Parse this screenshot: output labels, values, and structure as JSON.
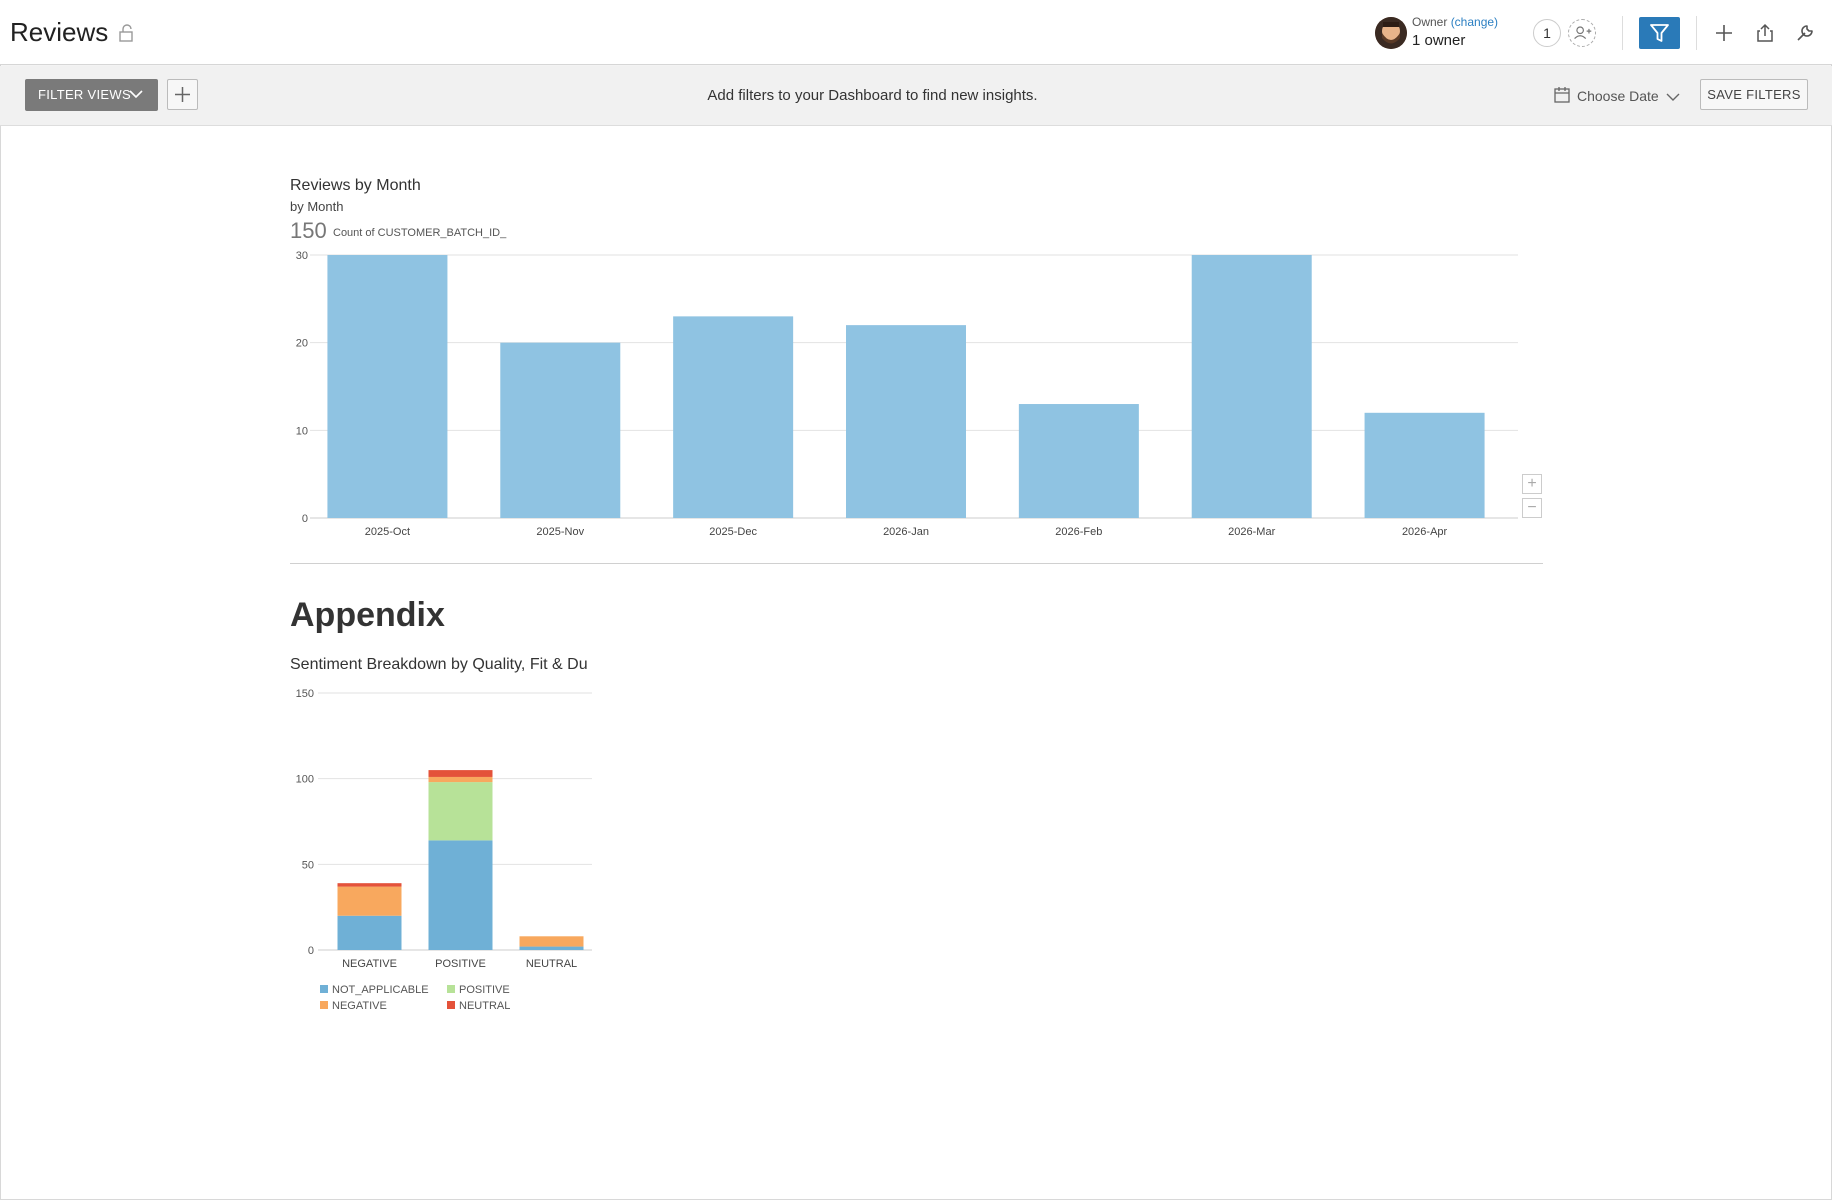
{
  "header": {
    "title": "Reviews",
    "owner_label": "Owner",
    "owner_change": "(change)",
    "owner_count": "1 owner",
    "share_count": "1"
  },
  "filterbar": {
    "filter_views_label": "FILTER VIEWS",
    "hint": "Add filters to your Dashboard to find new insights.",
    "choose_date_label": "Choose Date",
    "save_filters_label": "SAVE FILTERS"
  },
  "colors": {
    "accent": "#2a7ab8",
    "bar": "#8fc3e2",
    "not_applicable": "#6fb0d6",
    "positive": "#b7e298",
    "negative": "#f8a85e",
    "neutral": "#e4523a"
  },
  "icons": [
    "lock-icon",
    "avatar",
    "add-user-icon",
    "filter-icon",
    "plus-icon",
    "share-icon",
    "wrench-icon",
    "chevron-down-icon",
    "calendar-icon"
  ],
  "appendix": {
    "title": "Appendix"
  },
  "chart_data": [
    {
      "type": "bar",
      "title": "Reviews by Month",
      "subtitle": "by Month",
      "total": "150",
      "ylabel": "Count of CUSTOMER_BATCH_ID_",
      "categories": [
        "2025-Oct",
        "2025-Nov",
        "2025-Dec",
        "2026-Jan",
        "2026-Feb",
        "2026-Mar",
        "2026-Apr"
      ],
      "values": [
        30,
        20,
        23,
        22,
        13,
        30,
        12
      ],
      "ylim": [
        0,
        30
      ],
      "yticks": [
        0,
        10,
        20,
        30
      ],
      "grid": true
    },
    {
      "type": "bar",
      "stacked": true,
      "title": "Sentiment Breakdown by Quality, Fit & Du",
      "categories": [
        "NEGATIVE",
        "POSITIVE",
        "NEUTRAL"
      ],
      "series": [
        {
          "name": "NOT_APPLICABLE",
          "values": [
            20,
            64,
            2
          ]
        },
        {
          "name": "POSITIVE",
          "values": [
            0,
            34,
            0
          ]
        },
        {
          "name": "NEGATIVE",
          "values": [
            17,
            3,
            6
          ]
        },
        {
          "name": "NEUTRAL",
          "values": [
            2,
            4,
            0
          ]
        }
      ],
      "ylim": [
        0,
        150
      ],
      "yticks": [
        0,
        50,
        100,
        150
      ],
      "grid": true,
      "legend": "bottom"
    }
  ]
}
